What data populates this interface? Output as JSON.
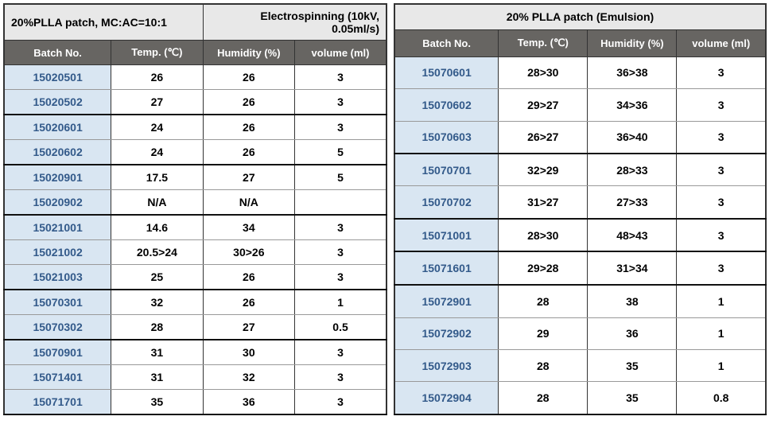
{
  "left": {
    "titleLeft": "20%PLLA patch, MC:AC=10:1",
    "titleRight": "Electrospinning (10kV, 0.05ml/s)",
    "headers": [
      "Batch No.",
      "Temp. (℃)",
      "Humidity (%)",
      "volume (ml)"
    ],
    "rows": [
      {
        "batch": "15020501",
        "temp": "26",
        "hum": "26",
        "vol": "3",
        "groupEnd": false
      },
      {
        "batch": "15020502",
        "temp": "27",
        "hum": "26",
        "vol": "3",
        "groupEnd": true
      },
      {
        "batch": "15020601",
        "temp": "24",
        "hum": "26",
        "vol": "3",
        "groupEnd": false
      },
      {
        "batch": "15020602",
        "temp": "24",
        "hum": "26",
        "vol": "5",
        "groupEnd": true
      },
      {
        "batch": "15020901",
        "temp": "17.5",
        "hum": "27",
        "vol": "5",
        "groupEnd": false
      },
      {
        "batch": "15020902",
        "temp": "N/A",
        "hum": "N/A",
        "vol": "",
        "groupEnd": true
      },
      {
        "batch": "15021001",
        "temp": "14.6",
        "hum": "34",
        "vol": "3",
        "groupEnd": false
      },
      {
        "batch": "15021002",
        "temp": "20.5>24",
        "hum": "30>26",
        "vol": "3",
        "groupEnd": false
      },
      {
        "batch": "15021003",
        "temp": "25",
        "hum": "26",
        "vol": "3",
        "groupEnd": true
      },
      {
        "batch": "15070301",
        "temp": "32",
        "hum": "26",
        "vol": "1",
        "groupEnd": false
      },
      {
        "batch": "15070302",
        "temp": "28",
        "hum": "27",
        "vol": "0.5",
        "groupEnd": true
      },
      {
        "batch": "15070901",
        "temp": "31",
        "hum": "30",
        "vol": "3",
        "groupEnd": false
      },
      {
        "batch": "15071401",
        "temp": "31",
        "hum": "32",
        "vol": "3",
        "groupEnd": false
      },
      {
        "batch": "15071701",
        "temp": "35",
        "hum": "36",
        "vol": "3",
        "groupEnd": true
      }
    ]
  },
  "right": {
    "title": "20% PLLA patch (Emulsion)",
    "headers": [
      "Batch No.",
      "Temp. (℃)",
      "Humidity (%)",
      "volume (ml)"
    ],
    "rows": [
      {
        "batch": "15070601",
        "temp": "28>30",
        "hum": "36>38",
        "vol": "3",
        "groupEnd": false
      },
      {
        "batch": "15070602",
        "temp": "29>27",
        "hum": "34>36",
        "vol": "3",
        "groupEnd": false
      },
      {
        "batch": "15070603",
        "temp": "26>27",
        "hum": "36>40",
        "vol": "3",
        "groupEnd": true
      },
      {
        "batch": "15070701",
        "temp": "32>29",
        "hum": "28>33",
        "vol": "3",
        "groupEnd": false
      },
      {
        "batch": "15070702",
        "temp": "31>27",
        "hum": "27>33",
        "vol": "3",
        "groupEnd": true
      },
      {
        "batch": "15071001",
        "temp": "28>30",
        "hum": "48>43",
        "vol": "3",
        "groupEnd": true
      },
      {
        "batch": "15071601",
        "temp": "29>28",
        "hum": "31>34",
        "vol": "3",
        "groupEnd": true
      },
      {
        "batch": "15072901",
        "temp": "28",
        "hum": "38",
        "vol": "1",
        "groupEnd": false
      },
      {
        "batch": "15072902",
        "temp": "29",
        "hum": "36",
        "vol": "1",
        "groupEnd": false
      },
      {
        "batch": "15072903",
        "temp": "28",
        "hum": "35",
        "vol": "1",
        "groupEnd": false
      },
      {
        "batch": "15072904",
        "temp": "28",
        "hum": "35",
        "vol": "0.8",
        "groupEnd": true
      }
    ]
  },
  "colors": {
    "titleBg": "#e8e8e8",
    "headerBg": "#676562",
    "headerFg": "#ffffff",
    "batchBg": "#d9e6f2",
    "batchFg": "#335a8a",
    "border": "#333333",
    "thinBorder": "#999999"
  }
}
